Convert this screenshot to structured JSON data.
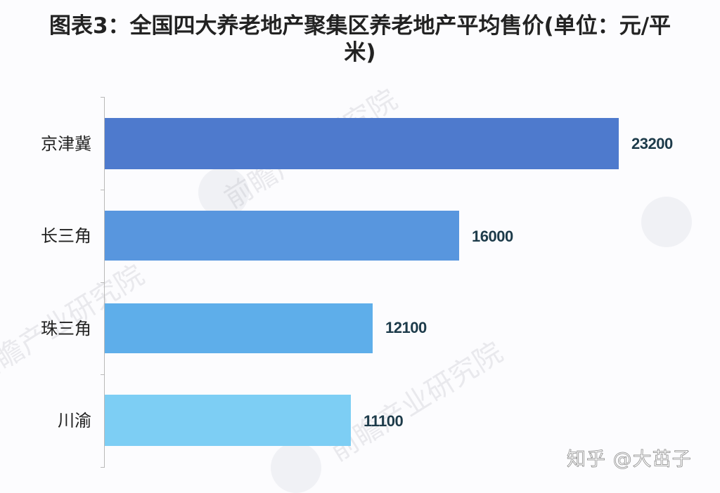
{
  "title": {
    "line1": "图表3：全国四大养老地产聚集区养老地产平均售价(单位：元/平",
    "line2": "米)"
  },
  "watermark": {
    "source": "前瞻产业研究院",
    "credit": "知乎 @大茁子"
  },
  "colors": {
    "bar_1": "#4e7acd",
    "bar_2": "#5896de",
    "bar_3": "#5eaeea",
    "bar_4": "#7dcef4",
    "value_label": "#1d3b4a"
  },
  "chart_data": {
    "type": "bar",
    "orientation": "horizontal",
    "title": "图表3：全国四大养老地产聚集区养老地产平均售价(单位：元/平米)",
    "xlabel": "",
    "ylabel": "",
    "unit": "元/平米",
    "categories": [
      "京津冀",
      "长三角",
      "珠三角",
      "川渝"
    ],
    "values": [
      23200,
      16000,
      12100,
      11100
    ],
    "xlim": [
      0,
      25000
    ],
    "grid": false,
    "legend": null,
    "data_labels": [
      "23200",
      "16000",
      "12100",
      "11100"
    ]
  }
}
